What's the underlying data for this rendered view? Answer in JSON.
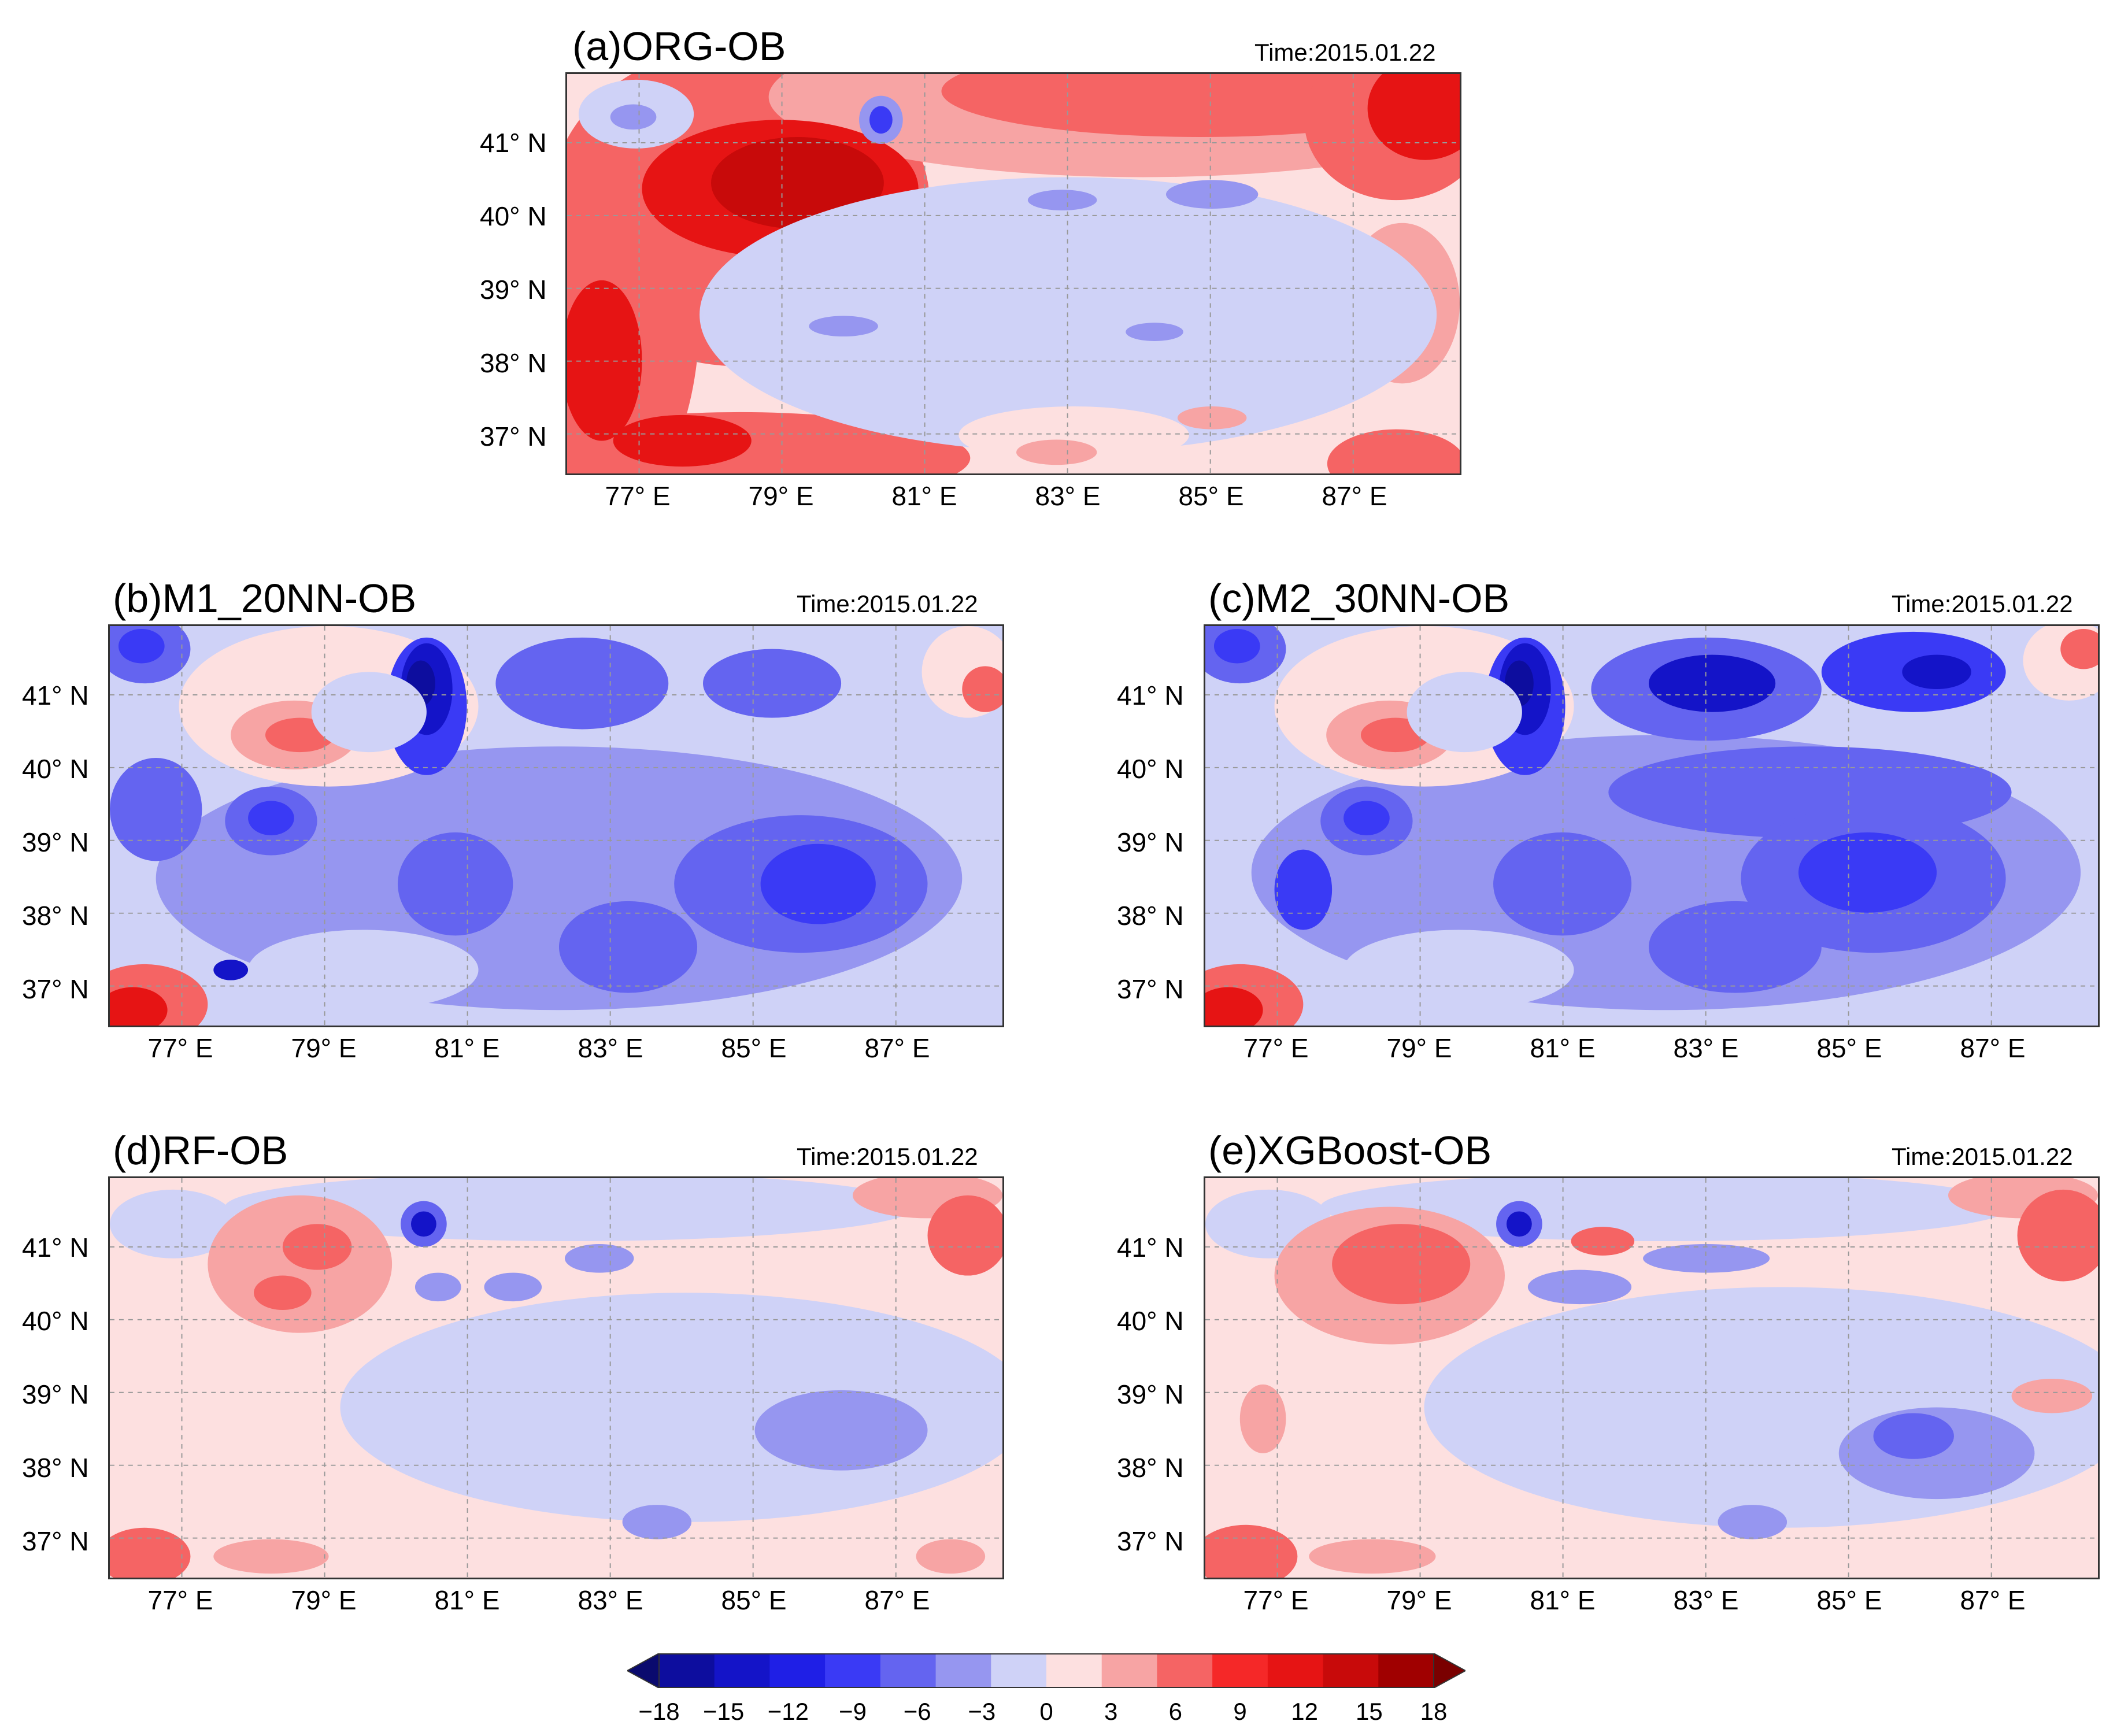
{
  "figure": {
    "panels": [
      {
        "id": "a",
        "title": "(a)ORG-OB",
        "time": "Time:2015.01.22"
      },
      {
        "id": "b",
        "title": "(b)M1_20NN-OB",
        "time": "Time:2015.01.22"
      },
      {
        "id": "c",
        "title": "(c)M2_30NN-OB",
        "time": "Time:2015.01.22"
      },
      {
        "id": "d",
        "title": "(d)RF-OB",
        "time": "Time:2015.01.22"
      },
      {
        "id": "e",
        "title": "(e)XGBoost-OB",
        "time": "Time:2015.01.22"
      }
    ],
    "lat_labels": [
      "41° N",
      "40° N",
      "39° N",
      "38° N",
      "37° N"
    ],
    "lon_labels": [
      "77° E",
      "79° E",
      "81° E",
      "83° E",
      "85° E",
      "87° E"
    ],
    "colorbar": {
      "ticks": [
        "-18",
        "-15",
        "-12",
        "-9",
        "-6",
        "-3",
        "0",
        "3",
        "6",
        "9",
        "12",
        "15",
        "18"
      ],
      "colors": [
        "#0a0a6e",
        "#0d0d9e",
        "#1414c8",
        "#1f1fe6",
        "#3a3af5",
        "#6464f0",
        "#9696f0",
        "#cfd2f7",
        "#fde0e0",
        "#f7a4a4",
        "#f56464",
        "#f52828",
        "#e61414",
        "#c80a0a",
        "#a00000",
        "#7a0000"
      ]
    }
  }
}
